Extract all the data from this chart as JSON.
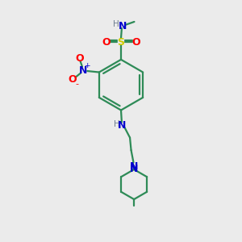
{
  "bg_color": "#ebebeb",
  "bond_color": "#2e8b57",
  "N_color": "#0000cd",
  "O_color": "#ff0000",
  "S_color": "#cccc00",
  "H_color": "#708090",
  "line_width": 1.6,
  "fig_size": [
    3.0,
    3.0
  ],
  "dpi": 100,
  "xlim": [
    0,
    10
  ],
  "ylim": [
    0,
    10
  ]
}
